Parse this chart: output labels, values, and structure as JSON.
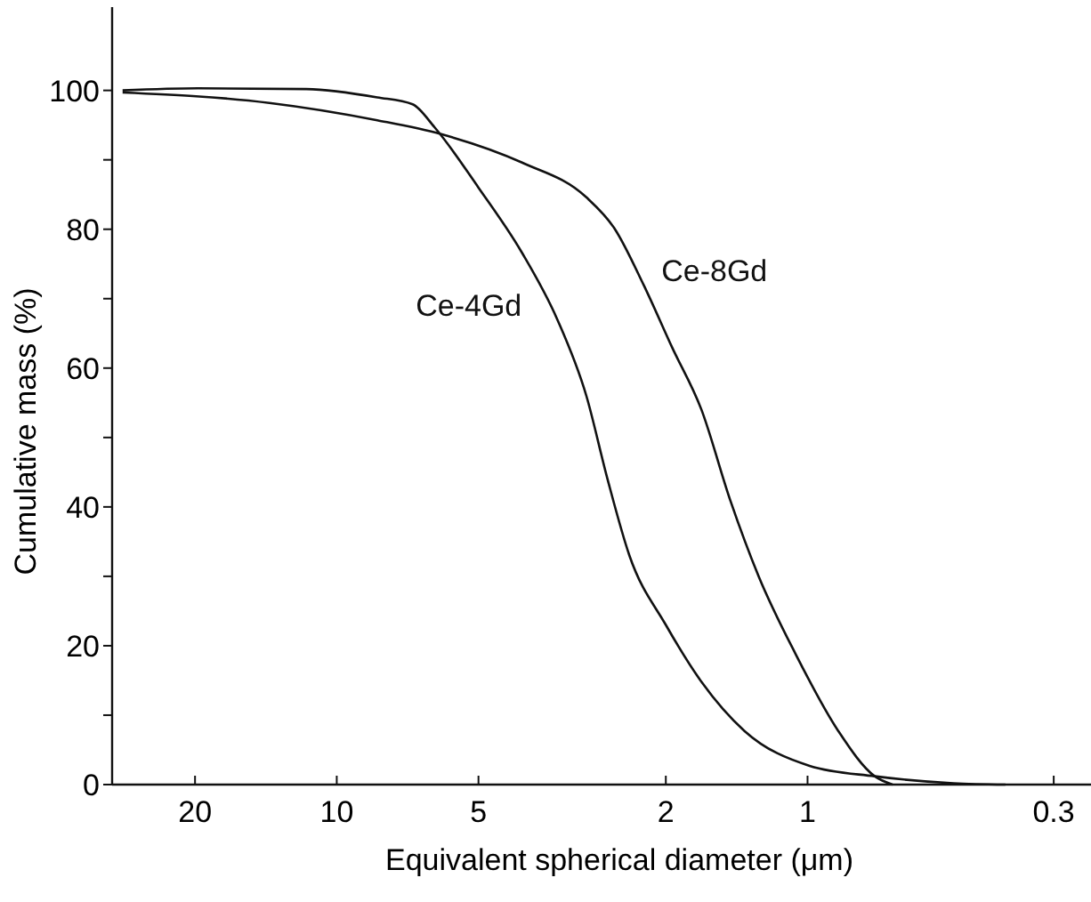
{
  "chart_data": {
    "type": "line",
    "xlabel": "Equivalent spherical diameter (μm)",
    "ylabel": "Cumulative mass (%)",
    "log": "x",
    "xlim": [
      30,
      0.25
    ],
    "xticks": [
      20,
      10,
      5,
      2,
      1,
      0.3
    ],
    "ylim": [
      0,
      112
    ],
    "yticks": [
      0,
      {
        "value": 10,
        "label": null
      },
      20,
      {
        "value": 30,
        "label": null
      },
      40,
      {
        "value": 50,
        "label": null
      },
      60,
      {
        "value": 70,
        "label": null
      },
      80,
      {
        "value": 90,
        "label": null
      },
      100
    ],
    "grid": false,
    "marker": "none",
    "line_style": "solid",
    "series": [
      {
        "name": "Ce-4Gd",
        "color": "#111111",
        "x": [
          28.5,
          19.7,
          11.6,
          8.2,
          6.9,
          6.2,
          5.0,
          4.04,
          3.4,
          2.95,
          2.66,
          2.39,
          2.0,
          1.68,
          1.36,
          0.99,
          0.72,
          0.49,
          0.38
        ],
        "values": [
          100,
          100.3,
          100.2,
          99,
          98,
          94.7,
          86,
          76.6,
          67,
          56,
          44,
          33,
          23,
          14.8,
          7.7,
          2.7,
          1.2,
          0.2,
          0
        ]
      },
      {
        "name": "Ce-8Gd",
        "color": "#111111",
        "x": [
          28.5,
          13.9,
          8.2,
          6.0,
          4.04,
          2.95,
          2.57,
          2.23,
          1.94,
          1.68,
          1.46,
          1.27,
          1.06,
          0.86,
          0.72,
          0.66
        ],
        "values": [
          99.7,
          98.2,
          95.7,
          93.7,
          89.6,
          84.6,
          80.1,
          72,
          63,
          54,
          41,
          30,
          18.8,
          7.7,
          1.2,
          0
        ]
      }
    ]
  }
}
